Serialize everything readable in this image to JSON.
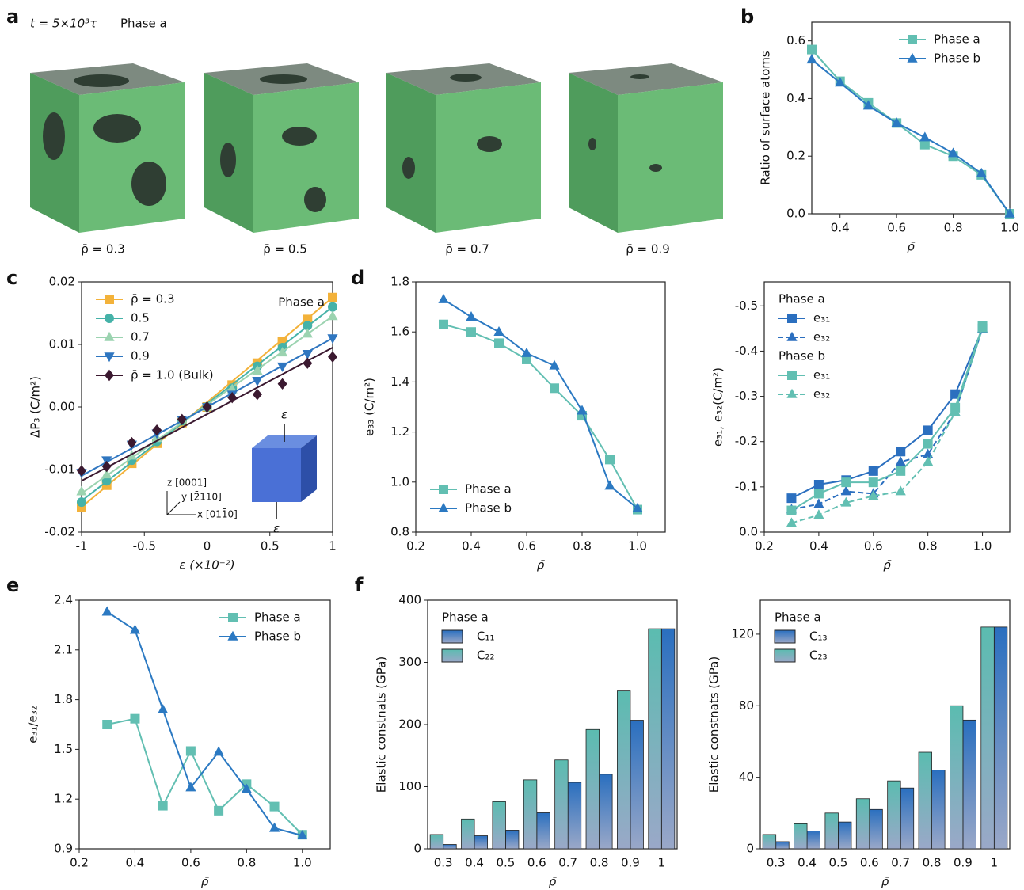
{
  "figure": {
    "panel_labels": [
      "a",
      "b",
      "c",
      "d",
      "e",
      "f"
    ]
  },
  "panel_a": {
    "time": "t = 5×10³τ",
    "phase": "Phase a",
    "labels": [
      "ρ̄ = 0.3",
      "ρ̄ = 0.5",
      "ρ̄ = 0.7",
      "ρ̄ = 0.9"
    ]
  },
  "chart_data": [
    {
      "type": "line",
      "xlabel": "ρ̄",
      "ylabel": "Ratio of surface atoms",
      "x": [
        0.3,
        0.4,
        0.5,
        0.6,
        0.7,
        0.8,
        0.9,
        1.0
      ],
      "series": [
        {
          "name": "Phase a",
          "color": "#62bfb2",
          "marker": "s",
          "values": [
            0.57,
            0.46,
            0.385,
            0.315,
            0.24,
            0.2,
            0.135,
            0.0
          ]
        },
        {
          "name": "Phase b",
          "color": "#2b79c2",
          "marker": "^",
          "values": [
            0.535,
            0.455,
            0.375,
            0.315,
            0.265,
            0.21,
            0.14,
            0.0
          ]
        }
      ],
      "xlim": [
        0.3,
        1.0
      ],
      "xticks": [
        0.4,
        0.6,
        0.8,
        {
          "value": 1.0,
          "label": "1.0"
        }
      ],
      "ylim": [
        0,
        0.665
      ],
      "yticks": [
        {
          "value": 0,
          "label": "0.0"
        },
        0.2,
        0.4,
        0.6
      ],
      "legend": "upper right"
    },
    {
      "type": "line",
      "xlabel": "ε (×10⁻²)",
      "ylabel": "ΔP₃ (C/m²)",
      "annotation": "Phase a",
      "inset": {
        "strain": "ε",
        "axes": [
          "z [0001]",
          "y [2̄110]",
          "x [011̄0]"
        ]
      },
      "x": [
        -1,
        -0.8,
        -0.6,
        -0.4,
        -0.2,
        0,
        0.2,
        0.4,
        0.6,
        0.8,
        1
      ],
      "series": [
        {
          "name": "ρ̄ = 0.3",
          "color": "#f3b23a",
          "marker": "s",
          "values": [
            -0.016,
            -0.0125,
            -0.009,
            -0.0058,
            -0.0025,
            0,
            0.0035,
            0.007,
            0.0105,
            0.014,
            0.0175
          ],
          "fit": [
            -0.016,
            0.0175
          ]
        },
        {
          "name": "0.5",
          "color": "#45b2a8",
          "marker": "o",
          "values": [
            -0.0152,
            -0.0118,
            -0.0085,
            -0.0055,
            -0.0022,
            0,
            0.003,
            0.0065,
            0.0095,
            0.013,
            0.016
          ],
          "fit": [
            -0.015,
            0.016
          ]
        },
        {
          "name": "0.7",
          "color": "#9bd3b0",
          "marker": "^",
          "values": [
            -0.0135,
            -0.0108,
            -0.0078,
            -0.005,
            -0.002,
            0,
            0.0028,
            0.0058,
            0.0087,
            0.0117,
            0.0145
          ],
          "fit": [
            -0.0138,
            0.0145
          ]
        },
        {
          "name": "0.9",
          "color": "#2f76c0",
          "marker": "v",
          "values": [
            -0.0105,
            -0.0085,
            -0.006,
            -0.0042,
            -0.002,
            0,
            0.002,
            0.0042,
            0.0065,
            0.0085,
            0.011
          ],
          "fit": [
            -0.011,
            0.011
          ]
        },
        {
          "name": "ρ̄ = 1.0 (Bulk)",
          "color": "#3b1930",
          "marker": "D",
          "values": [
            -0.0102,
            -0.0095,
            -0.0057,
            -0.0037,
            -0.002,
            0,
            0.0015,
            0.002,
            0.0037,
            0.007,
            0.008
          ],
          "fit": [
            -0.0118,
            0.0095
          ]
        }
      ],
      "xlim": [
        -1,
        1
      ],
      "xticks": [
        -1,
        -0.5,
        0,
        0.5,
        1
      ],
      "ylim": [
        -0.02,
        0.02
      ],
      "yticks": [
        -0.02,
        -0.01,
        {
          "value": 0,
          "label": "0.00"
        },
        0.01,
        0.02
      ],
      "legend": "upper left"
    },
    {
      "type": "line",
      "xlabel": "ρ̄",
      "ylabel": "e₃₃ (C/m²)",
      "x": [
        0.3,
        0.4,
        0.5,
        0.6,
        0.7,
        0.8,
        0.9,
        1.0
      ],
      "series": [
        {
          "name": "Phase a",
          "color": "#62bfb2",
          "marker": "s",
          "values": [
            1.63,
            1.6,
            1.555,
            1.49,
            1.375,
            1.265,
            1.09,
            0.89
          ]
        },
        {
          "name": "Phase b",
          "color": "#2b79c2",
          "marker": "^",
          "values": [
            1.73,
            1.66,
            1.6,
            1.515,
            1.465,
            1.285,
            0.985,
            0.895
          ]
        }
      ],
      "xlim": [
        0.2,
        1.1
      ],
      "xticks": [
        0.2,
        0.4,
        0.6,
        0.8,
        {
          "value": 1.0,
          "label": "1.0"
        }
      ],
      "ylim": [
        0.8,
        1.8
      ],
      "yticks": [
        0.8,
        {
          "value": 1.0,
          "label": "1.0"
        },
        1.2,
        1.4,
        1.6,
        1.8
      ],
      "legend": "lower left"
    },
    {
      "type": "line",
      "xlabel": "ρ̄",
      "ylabel": "e₃₁, e₃₂(C/m²)",
      "legend_titles": [
        "Phase a",
        "Phase b"
      ],
      "x": [
        0.3,
        0.4,
        0.5,
        0.6,
        0.7,
        0.8,
        0.9,
        1.0
      ],
      "series": [
        {
          "name": "e₃₁",
          "color": "#2b6fbf",
          "marker": "s",
          "values": [
            -0.075,
            -0.105,
            -0.115,
            -0.135,
            -0.178,
            -0.225,
            -0.305,
            -0.45
          ]
        },
        {
          "name": "e₃₂",
          "color": "#2b6fbf",
          "marker": "^",
          "dashed": true,
          "values": [
            -0.05,
            -0.062,
            -0.09,
            -0.085,
            -0.155,
            -0.172,
            -0.265,
            -0.45
          ]
        },
        {
          "name": "e₃₁",
          "color": "#62bfb2",
          "marker": "s",
          "values": [
            -0.048,
            -0.085,
            -0.11,
            -0.11,
            -0.135,
            -0.195,
            -0.275,
            -0.455
          ]
        },
        {
          "name": "e₃₂",
          "color": "#62bfb2",
          "marker": "^",
          "dashed": true,
          "values": [
            -0.02,
            -0.038,
            -0.065,
            -0.08,
            -0.09,
            -0.155,
            -0.265,
            -0.45
          ]
        }
      ],
      "xlim": [
        0.2,
        1.1
      ],
      "xticks": [
        0.2,
        0.4,
        0.6,
        0.8,
        {
          "value": 1.0,
          "label": "1.0"
        }
      ],
      "ylim": [
        0,
        -0.553
      ],
      "yticks": [
        {
          "value": 0,
          "label": "0.0"
        },
        -0.1,
        -0.2,
        -0.3,
        -0.4,
        -0.5
      ],
      "legend": "upper left"
    },
    {
      "type": "line",
      "xlabel": "ρ̄",
      "ylabel": "e₃₁/e₃₂",
      "x": [
        0.3,
        0.4,
        0.5,
        0.6,
        0.7,
        0.8,
        0.9,
        1.0
      ],
      "series": [
        {
          "name": "Phase a",
          "color": "#62bfb2",
          "marker": "s",
          "values": [
            1.65,
            1.685,
            1.16,
            1.49,
            1.13,
            1.29,
            1.155,
            0.985
          ]
        },
        {
          "name": "Phase b",
          "color": "#2b79c2",
          "marker": "^",
          "values": [
            2.33,
            2.22,
            1.74,
            1.27,
            1.485,
            1.26,
            1.025,
            0.98
          ]
        }
      ],
      "xlim": [
        0.2,
        1.1
      ],
      "xticks": [
        0.2,
        0.4,
        0.6,
        0.8,
        {
          "value": 1.0,
          "label": "1.0"
        }
      ],
      "ylim": [
        0.9,
        2.4
      ],
      "yticks": [
        0.9,
        1.2,
        1.5,
        1.8,
        2.1,
        2.4
      ],
      "legend": "upper right"
    },
    {
      "type": "bar",
      "xlabel": "ρ̄",
      "ylabel": "Elastic constnats (GPa)",
      "legend_title": "Phase a",
      "categories": [
        "0.3",
        "0.4",
        "0.5",
        "0.6",
        "0.7",
        "0.8",
        "0.9",
        "1"
      ],
      "series": [
        {
          "name": "C₁₁",
          "color": "#2a6fbf",
          "values": [
            7,
            21,
            30,
            58,
            107,
            120,
            207,
            354
          ]
        },
        {
          "name": "C₂₂",
          "color": "#5bbcb0",
          "values": [
            23,
            48,
            76,
            111,
            143,
            192,
            254,
            354
          ]
        }
      ],
      "ylim": [
        0,
        400
      ],
      "yticks": [
        0,
        100,
        200,
        300,
        400
      ],
      "legend": "upper left"
    },
    {
      "type": "bar",
      "xlabel": "ρ̄",
      "ylabel": "Elastic constnats (GPa)",
      "legend_title": "Phase a",
      "categories": [
        "0.3",
        "0.4",
        "0.5",
        "0.6",
        "0.7",
        "0.8",
        "0.9",
        "1"
      ],
      "series": [
        {
          "name": "C₁₃",
          "color": "#2a6fbf",
          "values": [
            4,
            10,
            15,
            22,
            34,
            44,
            72,
            124
          ]
        },
        {
          "name": "C₂₃",
          "color": "#5bbcb0",
          "values": [
            8,
            14,
            20,
            28,
            38,
            54,
            80,
            124
          ]
        }
      ],
      "ylim": [
        0,
        139
      ],
      "yticks": [
        0,
        40,
        80,
        120
      ],
      "legend": "upper left"
    }
  ]
}
